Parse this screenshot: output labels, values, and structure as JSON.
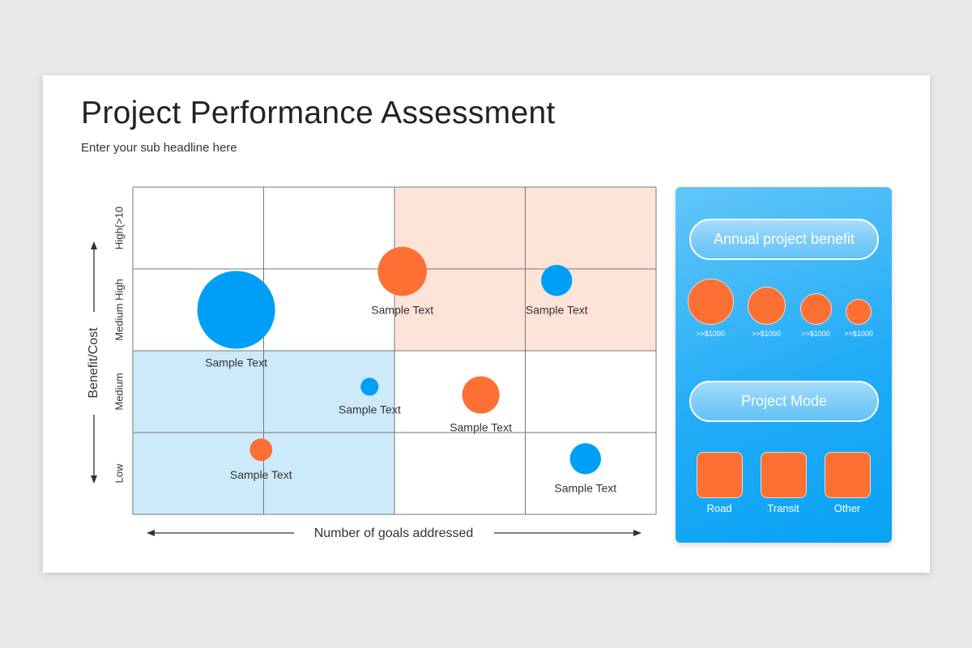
{
  "title": "Project Performance Assessment",
  "subtitle": "Enter your sub headline here",
  "chart_data": {
    "type": "scatter",
    "xlabel": "Number of goals addressed",
    "ylabel": "Benefit/Cost",
    "xlim": [
      0,
      4
    ],
    "ylim": [
      0,
      4
    ],
    "ytick_labels": [
      "Low",
      "Medium",
      "Medium High",
      "High(>10"
    ],
    "grid": true,
    "highlight_regions": [
      {
        "x": [
          2,
          4
        ],
        "y": [
          2,
          4
        ],
        "color": "#fde3d8"
      },
      {
        "x": [
          0,
          2
        ],
        "y": [
          0,
          2
        ],
        "color": "#cdeafb"
      }
    ],
    "points": [
      {
        "x": 0.79,
        "y": 2.5,
        "size": 100,
        "color": "#009ff7",
        "label": "Sample Text"
      },
      {
        "x": 2.06,
        "y": 2.97,
        "size": 63,
        "color": "#fd7033",
        "label": "Sample Text"
      },
      {
        "x": 3.24,
        "y": 2.86,
        "size": 40,
        "color": "#009ff7",
        "label": "Sample Text"
      },
      {
        "x": 1.81,
        "y": 1.56,
        "size": 23,
        "color": "#009ff7",
        "label": "Sample Text"
      },
      {
        "x": 2.66,
        "y": 1.46,
        "size": 48,
        "color": "#fd7033",
        "label": "Sample Text"
      },
      {
        "x": 0.98,
        "y": 0.79,
        "size": 29,
        "color": "#fd7033",
        "label": "Sample Text"
      },
      {
        "x": 3.46,
        "y": 0.68,
        "size": 40,
        "color": "#009ff7",
        "label": "Sample Text"
      }
    ]
  },
  "legend": {
    "benefit_title": "Annual project benefit",
    "benefit_items": [
      ">>$1000",
      ">>$1000",
      ">>$1000",
      ">>$1000"
    ],
    "mode_title": "Project Mode",
    "mode_items": [
      "Road",
      "Transit",
      "Other"
    ]
  }
}
